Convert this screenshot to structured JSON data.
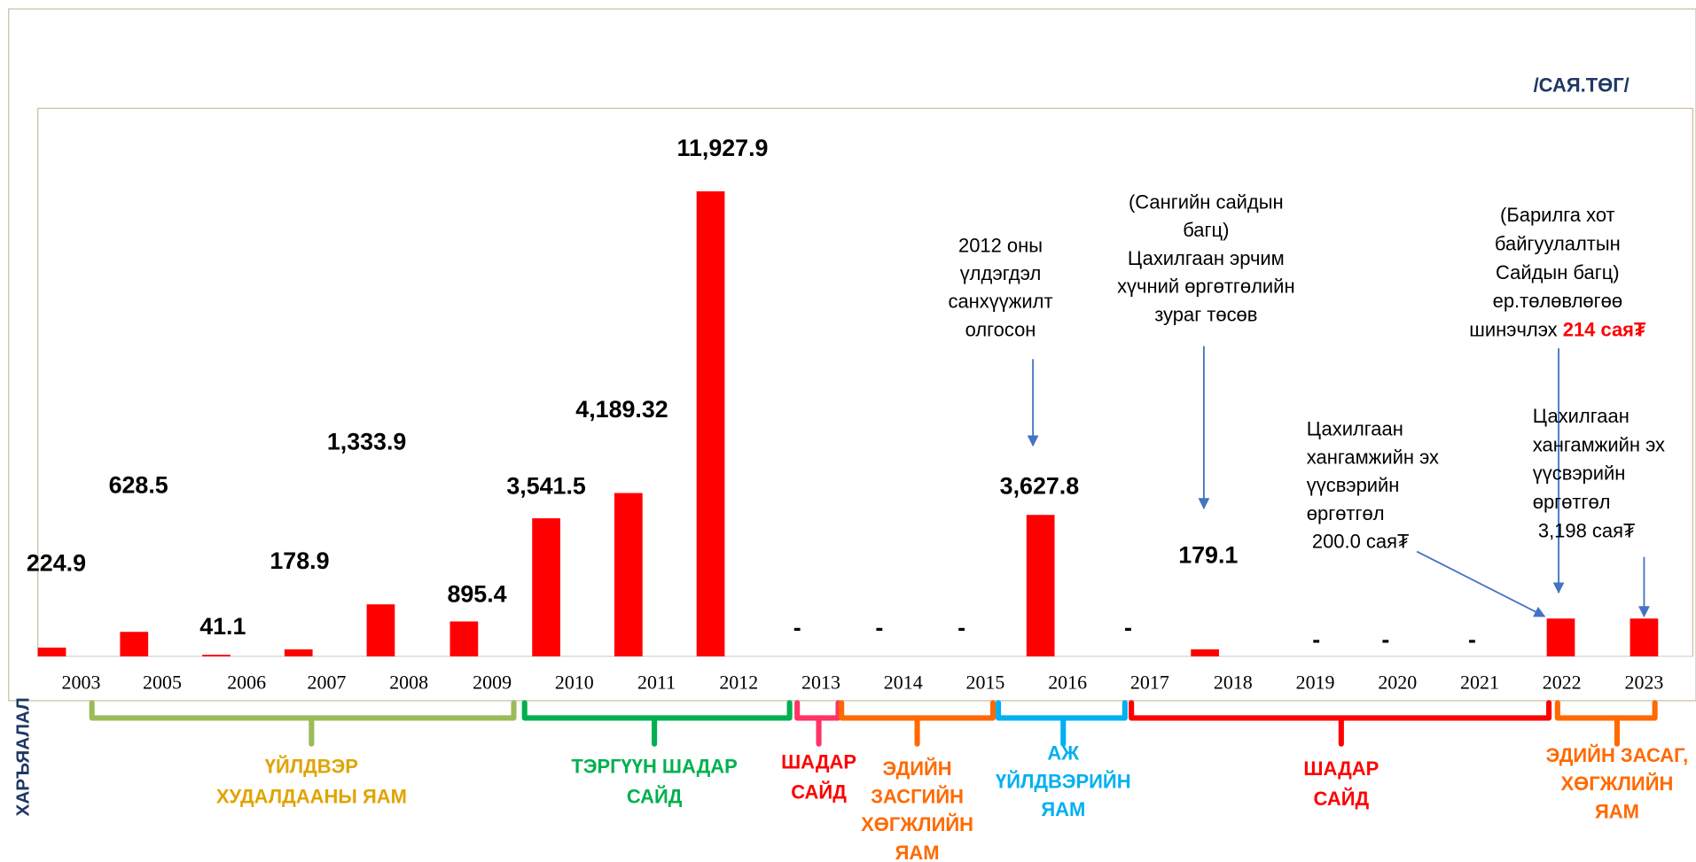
{
  "chart_data": {
    "type": "bar",
    "unit": "/САЯ.ТӨГ/",
    "side_label": "ХАРЪЯАЛАЛ",
    "color": "#ff0000",
    "ylim": [
      0,
      14000
    ],
    "categories": [
      "2003",
      "2005",
      "2006",
      "2007",
      "2008",
      "2009",
      "2010",
      "2011",
      "2012",
      "2013",
      "2014",
      "2015",
      "2016",
      "2017",
      "2018",
      "2019",
      "2020",
      "2021",
      "2022",
      "2023"
    ],
    "values": [
      224.9,
      628.5,
      41.1,
      178.9,
      1333.9,
      895.4,
      3541.5,
      4189.32,
      11927.9,
      0,
      0,
      0,
      3627.8,
      0,
      179.1,
      0,
      0,
      0,
      970,
      970
    ],
    "value_labels": [
      "224.9",
      "628.5",
      "41.1",
      "178.9",
      "1,333.9",
      "895.4",
      "3,541.5",
      "4,189.32",
      "11,927.9",
      "-",
      "-",
      "-",
      "3,627.8",
      "-",
      "179.1",
      "-",
      "-",
      "-",
      null,
      null
    ],
    "annotations": [
      {
        "lines": [
          "2012 оны",
          "үлдэгдэл",
          "санхүүжилт",
          "олгосон"
        ]
      },
      {
        "lines": [
          "(Сангийн сайдын",
          "багц)",
          "Цахилгаан эрчим",
          "хүчний өргөтгөлийн",
          "зураг төсөв"
        ]
      },
      {
        "lines": [
          "(Барилга хот",
          "байгуулалтын",
          "Сайдын багц)",
          "ер.төлөвлөгөө",
          "шинэчлэх"
        ],
        "highlight": "214 сая₮"
      },
      {
        "lines": [
          "Цахилгаан",
          "хангамжийн эх",
          "үүсвэрийн",
          "өргөтгөл"
        ],
        "highlight": "200.0 сая₮"
      },
      {
        "lines": [
          "Цахилгаан",
          "хангамжийн эх",
          "үүсвэрийн",
          "өргөтгөл"
        ],
        "highlight": "3,198 сая₮"
      }
    ],
    "groups": [
      {
        "lines": [
          "ҮЙЛДВЭР",
          "ХУДАЛДААНЫ ЯАМ"
        ],
        "color": "#e0a400",
        "brace_color": "#9bbb59"
      },
      {
        "lines": [
          "ТЭРГҮҮН ШАДАР",
          "САЙД"
        ],
        "color": "#00b050",
        "brace_color": "#00b050"
      },
      {
        "lines": [
          "ШАДАР",
          "САЙД"
        ],
        "color": "#ff0000",
        "brace_color": "#ff3366"
      },
      {
        "lines": [
          "ЭДИЙН",
          "ЗАСГИЙН",
          "ХӨГЖЛИЙН",
          "ЯАМ"
        ],
        "color": "#ff6a00",
        "brace_color": "#ff6a00"
      },
      {
        "lines": [
          "АЖ",
          "ҮЙЛДВЭРИЙН",
          "ЯАМ"
        ],
        "color": "#00b0f0",
        "brace_color": "#00b0f0"
      },
      {
        "lines": [
          "ШАДАР",
          "САЙД"
        ],
        "color": "#ff0000",
        "brace_color": "#ff0000"
      },
      {
        "lines": [
          "ЭДИЙН ЗАСАГ,",
          "ХӨГЖЛИЙН",
          "ЯАМ"
        ],
        "color": "#ff6a00",
        "brace_color": "#ff6a00"
      }
    ]
  }
}
